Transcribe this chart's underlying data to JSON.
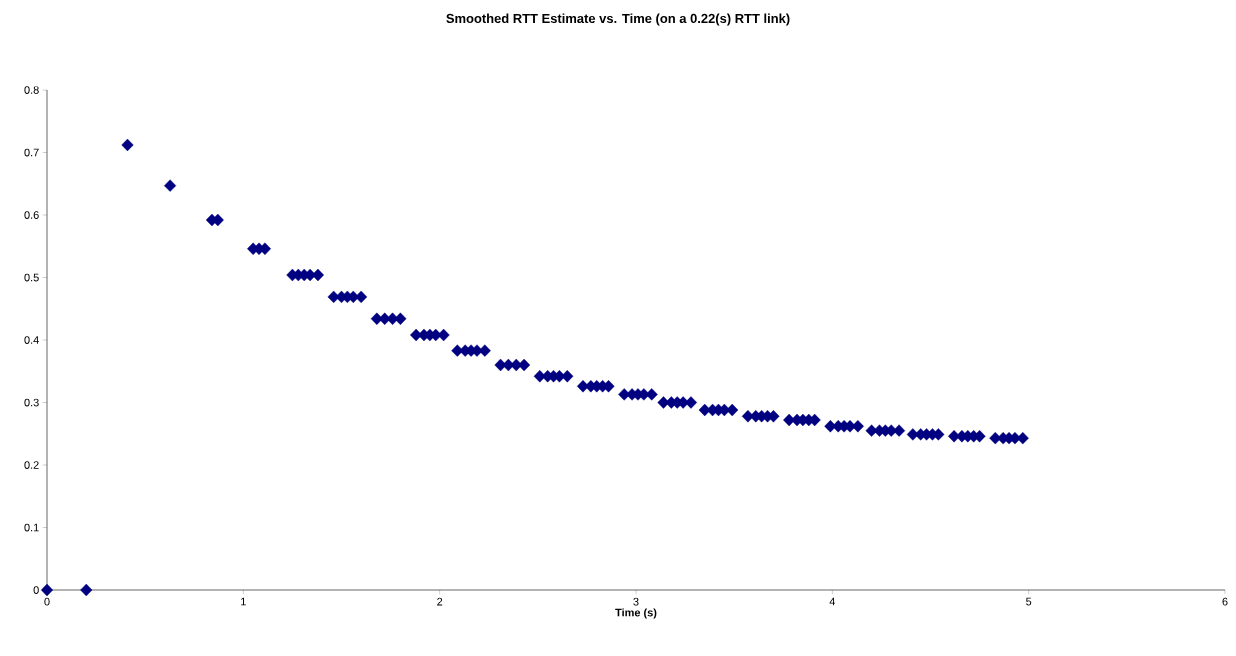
{
  "chart_data": {
    "type": "scatter",
    "title": "Smoothed RTT Estimate vs. Time (on a 0.22(s) RTT link)",
    "xlabel": "Time   (s)",
    "x": [
      0,
      0.2,
      0.41,
      0.627,
      0.84,
      0.87,
      1.05,
      1.08,
      1.11,
      1.25,
      1.28,
      1.31,
      1.34,
      1.38,
      1.46,
      1.5,
      1.53,
      1.56,
      1.6,
      1.68,
      1.72,
      1.76,
      1.8,
      1.88,
      1.92,
      1.95,
      1.98,
      2.02,
      2.09,
      2.13,
      2.16,
      2.19,
      2.23,
      2.31,
      2.35,
      2.39,
      2.43,
      2.51,
      2.55,
      2.58,
      2.61,
      2.65,
      2.73,
      2.77,
      2.8,
      2.83,
      2.86,
      2.94,
      2.98,
      3.01,
      3.04,
      3.08,
      3.14,
      3.18,
      3.21,
      3.24,
      3.28,
      3.35,
      3.39,
      3.42,
      3.45,
      3.49,
      3.57,
      3.61,
      3.64,
      3.67,
      3.7,
      3.78,
      3.82,
      3.85,
      3.88,
      3.91,
      3.99,
      4.03,
      4.06,
      4.09,
      4.13,
      4.2,
      4.24,
      4.27,
      4.3,
      4.34,
      4.41,
      4.45,
      4.48,
      4.51,
      4.54,
      4.62,
      4.66,
      4.69,
      4.72,
      4.75,
      4.83,
      4.87,
      4.9,
      4.93,
      4.97
    ],
    "values": [
      0,
      0,
      0.712,
      0.647,
      0.592,
      0.592,
      0.546,
      0.546,
      0.546,
      0.504,
      0.504,
      0.504,
      0.504,
      0.504,
      0.469,
      0.469,
      0.469,
      0.469,
      0.469,
      0.434,
      0.434,
      0.434,
      0.434,
      0.408,
      0.408,
      0.408,
      0.408,
      0.408,
      0.383,
      0.383,
      0.383,
      0.383,
      0.383,
      0.36,
      0.36,
      0.36,
      0.36,
      0.342,
      0.342,
      0.342,
      0.342,
      0.342,
      0.326,
      0.326,
      0.326,
      0.326,
      0.326,
      0.313,
      0.313,
      0.313,
      0.313,
      0.313,
      0.3,
      0.3,
      0.3,
      0.3,
      0.3,
      0.288,
      0.288,
      0.288,
      0.288,
      0.288,
      0.278,
      0.278,
      0.278,
      0.278,
      0.278,
      0.272,
      0.272,
      0.272,
      0.272,
      0.272,
      0.262,
      0.262,
      0.262,
      0.262,
      0.262,
      0.255,
      0.255,
      0.255,
      0.255,
      0.255,
      0.249,
      0.249,
      0.249,
      0.249,
      0.249,
      0.246,
      0.246,
      0.246,
      0.246,
      0.246,
      0.243,
      0.243,
      0.243,
      0.243,
      0.243
    ],
    "color": "#000080",
    "marker": "diamond",
    "xlim": [
      0,
      6
    ],
    "ylim": [
      0,
      0.8
    ],
    "xticks": [
      0,
      1,
      2,
      3,
      4,
      5,
      6
    ],
    "yticks": [
      0,
      0.1,
      0.2,
      0.3,
      0.4,
      0.5,
      0.6,
      0.7,
      0.8
    ]
  }
}
